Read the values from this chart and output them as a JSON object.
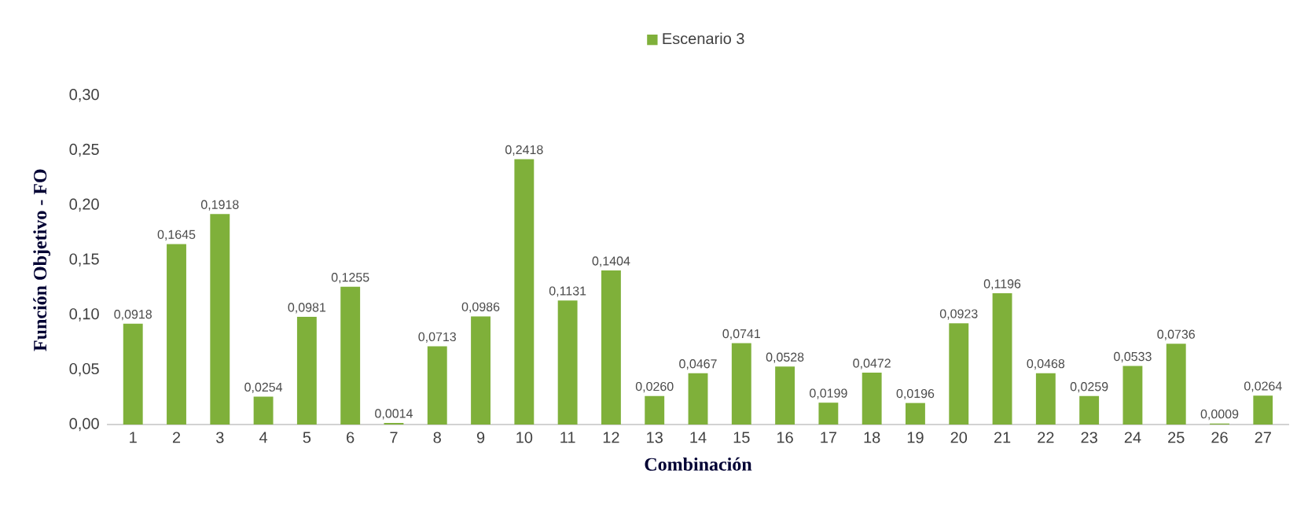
{
  "chart_data": {
    "type": "bar",
    "xlabel": "Combinación",
    "ylabel": "Función Objetivo - FO",
    "categories": [
      "1",
      "2",
      "3",
      "4",
      "5",
      "6",
      "7",
      "8",
      "9",
      "10",
      "11",
      "12",
      "13",
      "14",
      "15",
      "16",
      "17",
      "18",
      "19",
      "20",
      "21",
      "22",
      "23",
      "24",
      "25",
      "26",
      "27"
    ],
    "series": [
      {
        "name": "Escenario 3",
        "color": "#7fb03a",
        "values": [
          0.0918,
          0.1645,
          0.1918,
          0.0254,
          0.0981,
          0.1255,
          0.0014,
          0.0713,
          0.0986,
          0.2418,
          0.1131,
          0.1404,
          0.026,
          0.0467,
          0.0741,
          0.0528,
          0.0199,
          0.0472,
          0.0196,
          0.0923,
          0.1196,
          0.0468,
          0.0259,
          0.0533,
          0.0736,
          0.0009,
          0.0264
        ],
        "value_labels": [
          "0,0918",
          "0,1645",
          "0,1918",
          "0,0254",
          "0,0981",
          "0,1255",
          "0,0014",
          "0,0713",
          "0,0986",
          "0,2418",
          "0,1131",
          "0,1404",
          "0,0260",
          "0,0467",
          "0,0741",
          "0,0528",
          "0,0199",
          "0,0472",
          "0,0196",
          "0,0923",
          "0,1196",
          "0,0468",
          "0,0259",
          "0,0533",
          "0,0736",
          "0,0009",
          "0,0264"
        ]
      }
    ],
    "ylim": [
      0,
      0.3
    ],
    "yticks": [
      {
        "value": 0,
        "label": "0,00"
      },
      {
        "value": 0.05,
        "label": "0,05"
      },
      {
        "value": 0.1,
        "label": "0,10"
      },
      {
        "value": 0.15,
        "label": "0,15"
      },
      {
        "value": 0.2,
        "label": "0,20"
      },
      {
        "value": 0.25,
        "label": "0,25"
      },
      {
        "value": 0.3,
        "label": "0,30"
      }
    ],
    "grid": false,
    "legend": "top"
  }
}
